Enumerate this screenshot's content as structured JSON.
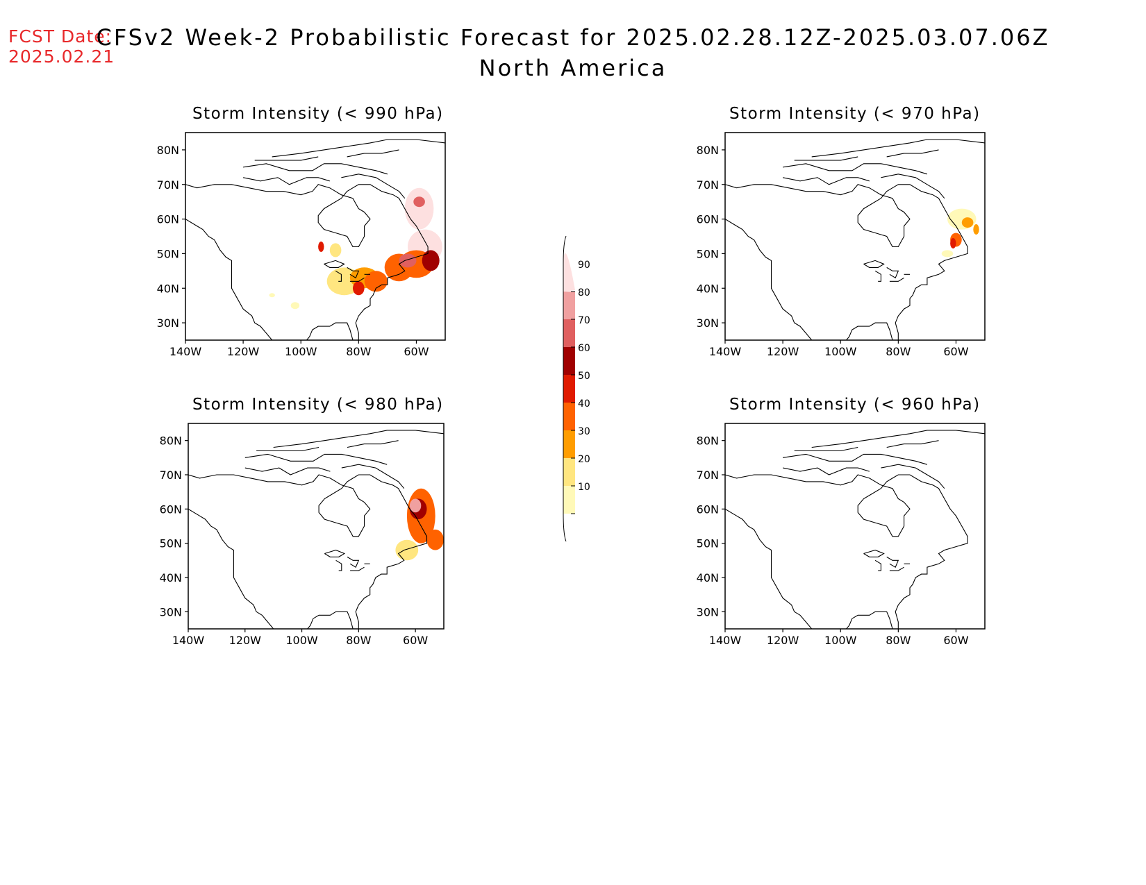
{
  "forecast_date": {
    "label": "FCST Date:",
    "value": "2025.02.21"
  },
  "title": {
    "line1": "CFSv2 Week-2 Probabilistic Forecast for 2025.02.28.12Z-2025.03.07.06Z",
    "line2": "North America"
  },
  "colors": {
    "text_red": "#e8282a",
    "levels": [
      "#fff9b8",
      "#ffe680",
      "#ff9d00",
      "#ff6200",
      "#e01a00",
      "#a00000",
      "#e06060",
      "#f0a0a0",
      "#fde0e0"
    ]
  },
  "colorbar": {
    "labels": [
      "10",
      "20",
      "30",
      "40",
      "50",
      "60",
      "70",
      "80",
      "90"
    ]
  },
  "axes": {
    "lon_labels": [
      "140W",
      "120W",
      "100W",
      "80W",
      "60W"
    ],
    "lat_labels": [
      "80N",
      "70N",
      "60N",
      "50N",
      "40N",
      "30N"
    ],
    "lon_values": [
      -140,
      -120,
      -100,
      -80,
      -60
    ],
    "lat_values": [
      80,
      70,
      60,
      50,
      40,
      30
    ],
    "lon_range": [
      -140,
      -50
    ],
    "lat_range": [
      25,
      85
    ]
  },
  "panels": [
    {
      "title": "Storm Intensity (< 990 hPa)",
      "blobs": [
        {
          "lon": -59,
          "lat": 63,
          "level": 8,
          "rx": 5,
          "ry": 6
        },
        {
          "lon": -59,
          "lat": 65,
          "level": 6,
          "rx": 2,
          "ry": 1.5
        },
        {
          "lon": -57,
          "lat": 52,
          "level": 8,
          "rx": 6,
          "ry": 5
        },
        {
          "lon": -85,
          "lat": 42,
          "level": 1,
          "rx": 6,
          "ry": 4
        },
        {
          "lon": -78,
          "lat": 43,
          "level": 2,
          "rx": 5,
          "ry": 3
        },
        {
          "lon": -74,
          "lat": 42,
          "level": 3,
          "rx": 4,
          "ry": 3
        },
        {
          "lon": -80,
          "lat": 40,
          "level": 4,
          "rx": 2,
          "ry": 2
        },
        {
          "lon": -66,
          "lat": 46,
          "level": 3,
          "rx": 5,
          "ry": 4
        },
        {
          "lon": -60,
          "lat": 47,
          "level": 3,
          "rx": 6,
          "ry": 4
        },
        {
          "lon": -63,
          "lat": 48,
          "level": 6,
          "rx": 3,
          "ry": 2
        },
        {
          "lon": -55,
          "lat": 48,
          "level": 5,
          "rx": 3,
          "ry": 3
        },
        {
          "lon": -88,
          "lat": 51,
          "level": 1,
          "rx": 2,
          "ry": 2
        },
        {
          "lon": -93,
          "lat": 52,
          "level": 4,
          "rx": 1,
          "ry": 1.5
        },
        {
          "lon": -102,
          "lat": 35,
          "level": 0,
          "rx": 1.5,
          "ry": 1
        },
        {
          "lon": -110,
          "lat": 38,
          "level": 0,
          "rx": 1,
          "ry": 0.6
        }
      ]
    },
    {
      "title": "Storm Intensity (< 970 hPa)",
      "blobs": [
        {
          "lon": -58,
          "lat": 60,
          "level": 0,
          "rx": 5,
          "ry": 3
        },
        {
          "lon": -56,
          "lat": 59,
          "level": 2,
          "rx": 2,
          "ry": 1.5
        },
        {
          "lon": -53,
          "lat": 57,
          "level": 2,
          "rx": 1,
          "ry": 1.5
        },
        {
          "lon": -60,
          "lat": 54,
          "level": 3,
          "rx": 2,
          "ry": 2
        },
        {
          "lon": -61,
          "lat": 53,
          "level": 4,
          "rx": 1,
          "ry": 1.5
        },
        {
          "lon": -63,
          "lat": 50,
          "level": 0,
          "rx": 2,
          "ry": 1
        }
      ]
    },
    {
      "title": "Storm Intensity (< 980 hPa)",
      "blobs": [
        {
          "lon": -58,
          "lat": 58,
          "level": 3,
          "rx": 5,
          "ry": 8
        },
        {
          "lon": -59,
          "lat": 60,
          "level": 5,
          "rx": 3,
          "ry": 3
        },
        {
          "lon": -60,
          "lat": 61,
          "level": 7,
          "rx": 2,
          "ry": 2
        },
        {
          "lon": -53,
          "lat": 51,
          "level": 3,
          "rx": 3,
          "ry": 3
        },
        {
          "lon": -63,
          "lat": 48,
          "level": 1,
          "rx": 4,
          "ry": 3
        }
      ]
    },
    {
      "title": "Storm Intensity (< 960 hPa)",
      "blobs": []
    }
  ]
}
